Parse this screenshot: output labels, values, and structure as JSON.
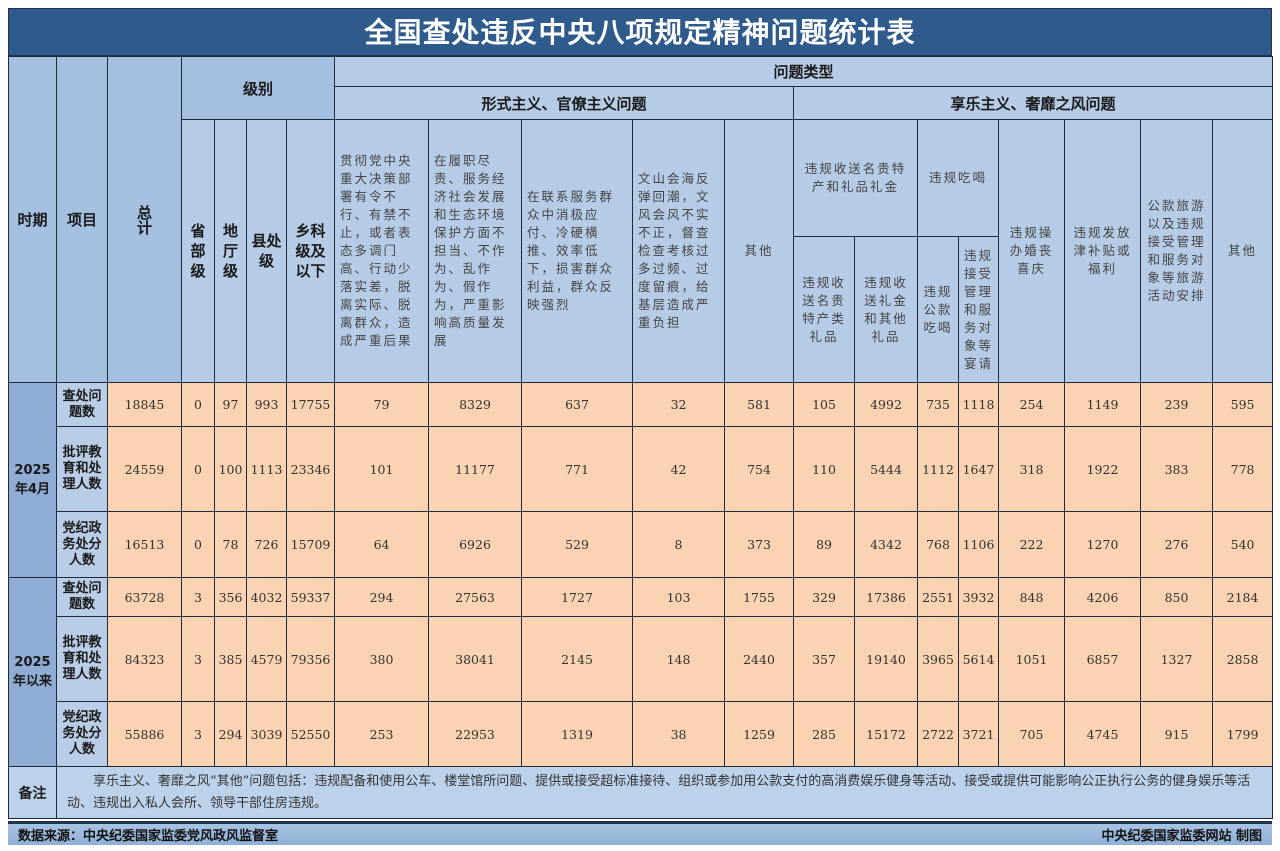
{
  "title": "全国查处违反中央八项规定精神问题统计表",
  "header": {
    "period": "时期",
    "item": "项目",
    "total": "总计",
    "level_group": "级别",
    "levels": [
      "省部级",
      "地厅级",
      "县处级",
      "乡科级及以下"
    ],
    "problem_type": "问题类型",
    "formalism_group": "形式主义、官僚主义问题",
    "formalism_cols": [
      "贯彻党中央重大决策部署有令不行、有禁不止，或者表态多调门高、行动少落实差，脱离实际、脱离群众，造成严重后果",
      "在履职尽责、服务经济社会发展和生态环境保护方面不担当、不作为、乱作为、假作为，严重影响高质量发展",
      "在联系服务群众中消极应付、冷硬横推、效率低下，损害群众利益，群众反映强烈",
      "文山会海反弹回潮，文风会风不实不正，督查检查考核过多过频、过度留痕，给基层造成严重负担",
      "其他"
    ],
    "hedonism_group": "享乐主义、奢靡之风问题",
    "gifts_group": "违规收送名贵特产和礼品礼金",
    "gifts_cols": [
      "违规收送名贵特产类礼品",
      "违规收送礼金和其他礼品"
    ],
    "dining_group": "违规吃喝",
    "dining_cols": [
      "违规公款吃喝",
      "违规接受管理和服务对象等宴请"
    ],
    "hedonism_cols": [
      "违规操办婚丧喜庆",
      "违规发放津补贴或福利",
      "公款旅游以及违规接受管理和服务对象等旅游活动安排",
      "其他"
    ]
  },
  "periods": [
    {
      "label": "2025年4月",
      "rows": [
        {
          "item": "查处问题数",
          "values": [
            18845,
            0,
            97,
            993,
            17755,
            79,
            8329,
            637,
            32,
            581,
            105,
            4992,
            735,
            1118,
            254,
            1149,
            239,
            595
          ]
        },
        {
          "item": "批评教育和处理人数",
          "values": [
            24559,
            0,
            100,
            1113,
            23346,
            101,
            11177,
            771,
            42,
            754,
            110,
            5444,
            1112,
            1647,
            318,
            1922,
            383,
            778
          ]
        },
        {
          "item": "党纪政务处分人数",
          "values": [
            16513,
            0,
            78,
            726,
            15709,
            64,
            6926,
            529,
            8,
            373,
            89,
            4342,
            768,
            1106,
            222,
            1270,
            276,
            540
          ]
        }
      ]
    },
    {
      "label": "2025年以来",
      "rows": [
        {
          "item": "查处问题数",
          "values": [
            63728,
            3,
            356,
            4032,
            59337,
            294,
            27563,
            1727,
            103,
            1755,
            329,
            17386,
            2551,
            3932,
            848,
            4206,
            850,
            2184
          ]
        },
        {
          "item": "批评教育和处理人数",
          "values": [
            84323,
            3,
            385,
            4579,
            79356,
            380,
            38041,
            2145,
            148,
            2440,
            357,
            19140,
            3965,
            5614,
            1051,
            6857,
            1327,
            2858
          ]
        },
        {
          "item": "党纪政务处分人数",
          "values": [
            55886,
            3,
            294,
            3039,
            52550,
            253,
            22953,
            1319,
            38,
            1259,
            285,
            15172,
            2722,
            3721,
            705,
            4745,
            915,
            1799
          ]
        }
      ]
    }
  ],
  "note": {
    "label": "备注",
    "text": "享乐主义、奢靡之风“其他”问题包括：违规配备和使用公车、楼堂馆所问题、提供或接受超标准接待、组织或参加用公款支付的高消费娱乐健身等活动、接受或提供可能影响公正执行公务的健身娱乐等活动、违规出入私人会所、领导干部住房违规。"
  },
  "footer": {
    "source": "数据来源：中央纪委国家监委党风政风监督室",
    "credit": "中央纪委国家监委网站 制图"
  },
  "colors": {
    "title_bg": "#2f5a8c",
    "header_bg": "#b6cbe5",
    "data_bg": "#f9d3b2",
    "period_bg": "#8fadd4"
  }
}
